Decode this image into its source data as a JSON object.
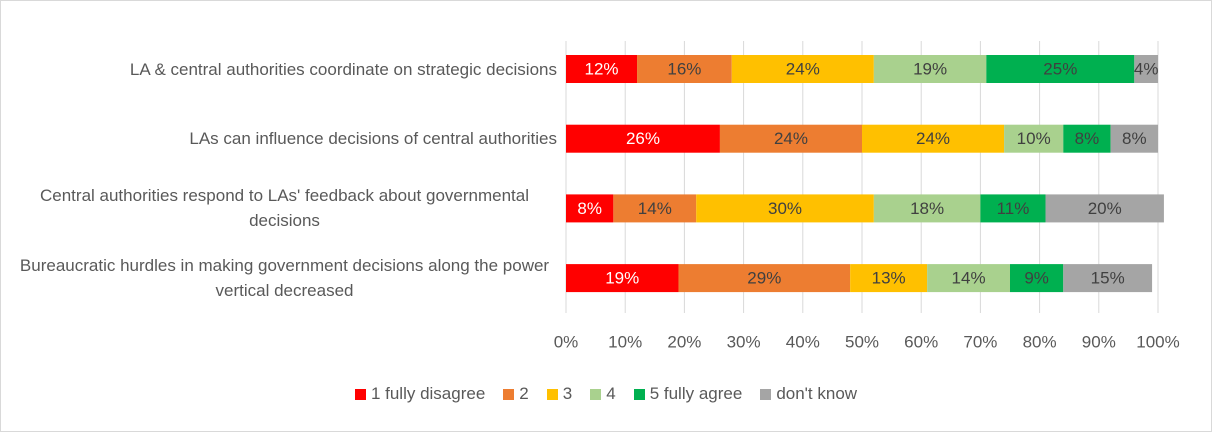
{
  "chart_data": {
    "type": "stacked_bar_horizontal",
    "categories": [
      "LA & central authorities coordinate on strategic decisions",
      "LAs can influence decisions of central authorities",
      "Central authorities respond to LAs' feedback about governmental decisions",
      "Bureaucratic hurdles in making government decisions along the power vertical decreased"
    ],
    "series": [
      {
        "name": "1 fully disagree",
        "color": "#ff0000",
        "values": [
          12,
          26,
          8,
          19
        ],
        "value_labels": [
          "12%",
          "26%",
          "8%",
          "19%"
        ]
      },
      {
        "name": "2",
        "color": "#ed7d31",
        "values": [
          16,
          24,
          14,
          29
        ],
        "value_labels": [
          "16%",
          "24%",
          "14%",
          "29%"
        ]
      },
      {
        "name": "3",
        "color": "#ffc000",
        "values": [
          24,
          24,
          30,
          13
        ],
        "value_labels": [
          "24%",
          "24%",
          "30%",
          "13%"
        ]
      },
      {
        "name": "4",
        "color": "#a9d18e",
        "values": [
          19,
          10,
          18,
          14
        ],
        "value_labels": [
          "19%",
          "10%",
          "18%",
          "14%"
        ]
      },
      {
        "name": "5 fully agree",
        "color": "#00b050",
        "values": [
          25,
          8,
          11,
          9
        ],
        "value_labels": [
          "25%",
          "8%",
          "11%",
          "9%"
        ]
      },
      {
        "name": "don't know",
        "color": "#a5a5a5",
        "values": [
          4,
          8,
          20,
          15
        ],
        "value_labels": [
          "4%",
          "8%",
          "20%",
          "15%"
        ]
      }
    ],
    "xlim": [
      0,
      100
    ],
    "xticks": [
      {
        "value": 0,
        "label": "0%"
      },
      {
        "value": 10,
        "label": "10%"
      },
      {
        "value": 20,
        "label": "20%"
      },
      {
        "value": 30,
        "label": "30%"
      },
      {
        "value": 40,
        "label": "40%"
      },
      {
        "value": 50,
        "label": "50%"
      },
      {
        "value": 60,
        "label": "60%"
      },
      {
        "value": 70,
        "label": "70%"
      },
      {
        "value": 80,
        "label": "80%"
      },
      {
        "value": 90,
        "label": "90%"
      },
      {
        "value": 100,
        "label": "100%"
      }
    ],
    "grid": true,
    "legend": "bottom"
  }
}
